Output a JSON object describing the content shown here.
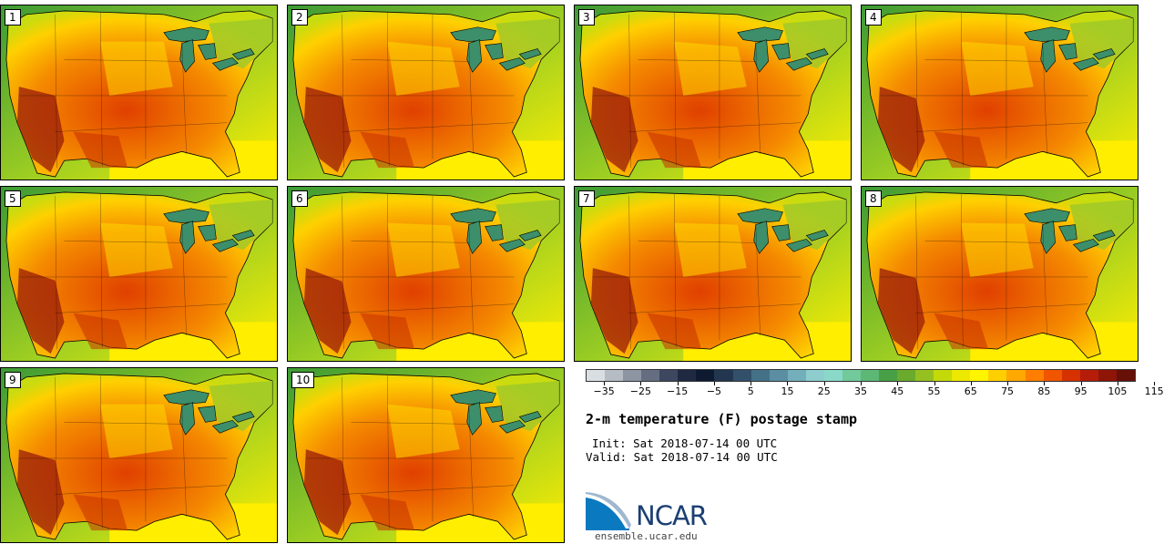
{
  "members": [
    "1",
    "2",
    "3",
    "4",
    "5",
    "6",
    "7",
    "8",
    "9",
    "10"
  ],
  "colorbar": {
    "colors": [
      "#d9dee3",
      "#b6bcc4",
      "#8d95a3",
      "#656e80",
      "#3d4760",
      "#1f2a42",
      "#0e1a30",
      "#22364f",
      "#33506b",
      "#447088",
      "#5b8ea3",
      "#73aebb",
      "#8ecdcd",
      "#89d8c8",
      "#72c99a",
      "#5db875",
      "#47a045",
      "#6aaa2c",
      "#95c020",
      "#c4d90a",
      "#ede800",
      "#fff500",
      "#ffcf00",
      "#ffa800",
      "#ff7e00",
      "#f05500",
      "#d63100",
      "#b51d0a",
      "#8f1507",
      "#661008"
    ],
    "ticks": [
      "−35",
      "−25",
      "−15",
      "−5",
      "5",
      "15",
      "25",
      "35",
      "45",
      "55",
      "65",
      "75",
      "85",
      "95",
      "105",
      "115"
    ]
  },
  "title": "2-m temperature (F) postage stamp",
  "init": "Init: Sat 2018-07-14 00 UTC",
  "valid": "Valid: Sat 2018-07-14 00 UTC",
  "logo_text": "NCAR",
  "site": "ensemble.ucar.edu",
  "colors": {
    "ocean_warm": "#ffee00",
    "ocean_cool": "#3c9a35",
    "lakes": "#3c8f6a",
    "hot": "#e04000",
    "very_hot": "#9a1c0a"
  }
}
